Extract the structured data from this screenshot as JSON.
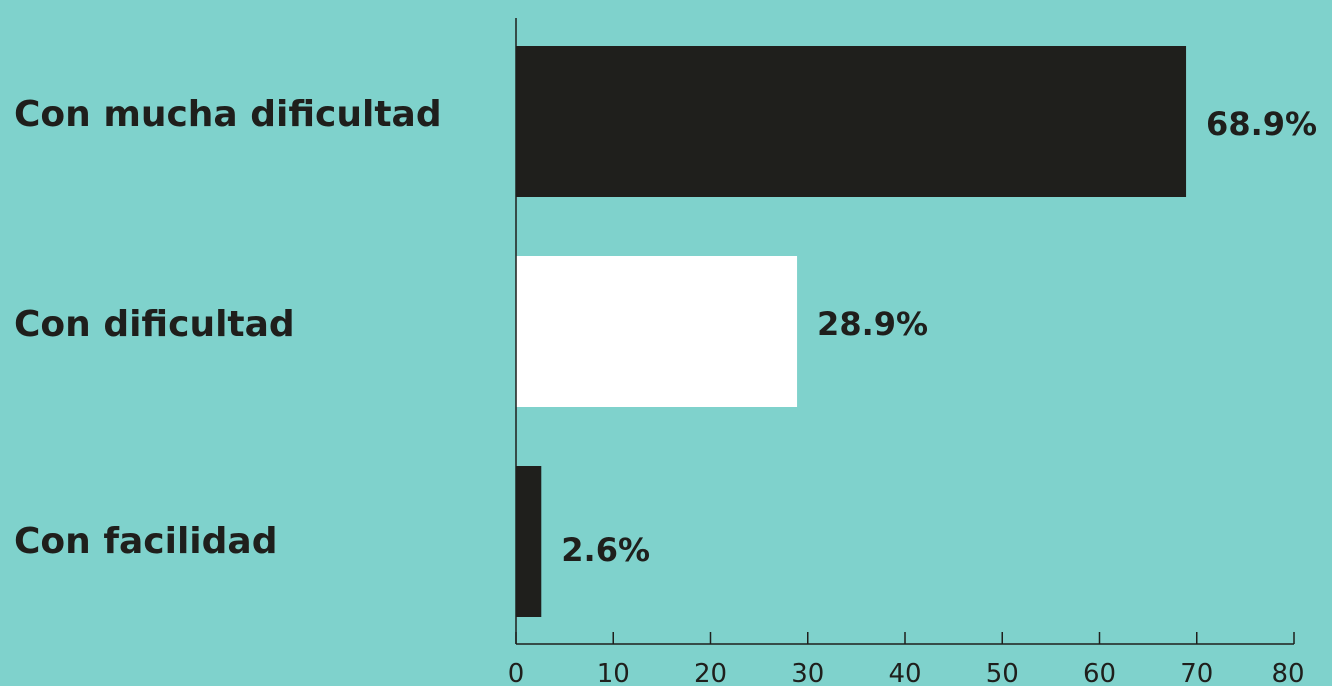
{
  "colors": {
    "background": "#7fd2cc",
    "bar_dark": "#1f1f1c",
    "bar_light": "#ffffff",
    "axis": "#1f1f1c",
    "text": "#1f1f1c"
  },
  "chart_data": {
    "type": "bar",
    "orientation": "horizontal",
    "categories": [
      "Con mucha dificultad",
      "Con dificultad",
      "Con facilidad"
    ],
    "values": [
      68.9,
      28.9,
      2.6
    ],
    "value_labels": [
      "68.9%",
      "28.9%",
      "2.6%"
    ],
    "bar_colors": [
      "#1f1f1c",
      "#ffffff",
      "#1f1f1c"
    ],
    "xlim": [
      0,
      80
    ],
    "xticks": [
      0,
      10,
      20,
      30,
      40,
      50,
      60,
      70,
      80
    ],
    "xtick_labels": [
      "0",
      "10",
      "20",
      "30",
      "40",
      "50",
      "60",
      "70",
      "80"
    ],
    "grid": false,
    "legend": "none"
  }
}
